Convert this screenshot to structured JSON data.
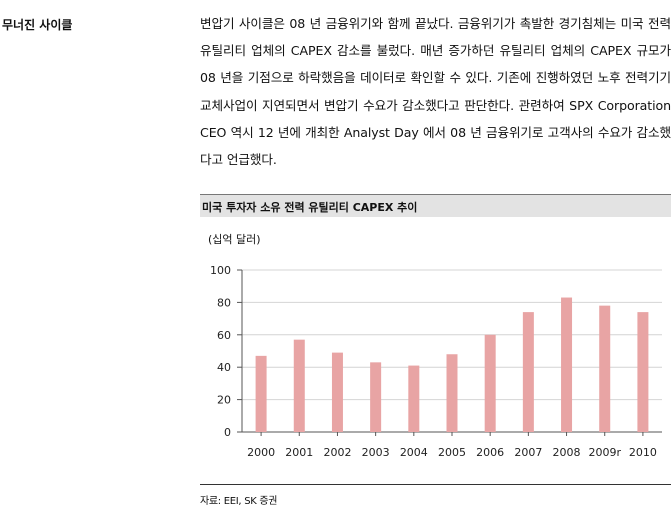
{
  "section": {
    "side_title": "무너진 사이클",
    "paragraph": "변압기 사이클은 08 년 금융위기와 함께 끝났다. 금융위기가 촉발한 경기침체는 미국 전력 유틸리티 업체의 CAPEX 감소를 불렀다. 매년 증가하던 유틸리티 업체의 CAPEX 규모가 08 년을 기점으로 하락했음을 데이터로 확인할 수 있다. 기존에 진행하였던 노후 전력기기 교체사업이 지연되면서 변압기 수요가 감소했다고 판단한다. 관련하여 SPX Corporation CEO 역시 12 년에 개최한 Analyst Day 에서 08 년 금융위기로 고객사의 수요가 감소했다고 언급했다."
  },
  "chart_data": {
    "type": "bar",
    "title": "미국 투자자 소유 전력 유틸리티 CAPEX 추이",
    "unit_label": "(십억 달러)",
    "categories": [
      "2000",
      "2001",
      "2002",
      "2003",
      "2004",
      "2005",
      "2006",
      "2007",
      "2008",
      "2009r",
      "2010"
    ],
    "values": [
      47,
      57,
      49,
      43,
      41,
      48,
      60,
      74,
      83,
      78,
      74
    ],
    "ylim": [
      0,
      100
    ],
    "yticks": [
      0,
      20,
      40,
      60,
      80,
      100
    ],
    "grid": true,
    "bar_color": "#e8a4a4",
    "grid_color": "#d4d4d4"
  },
  "source": "자료: EEI, SK 증권"
}
